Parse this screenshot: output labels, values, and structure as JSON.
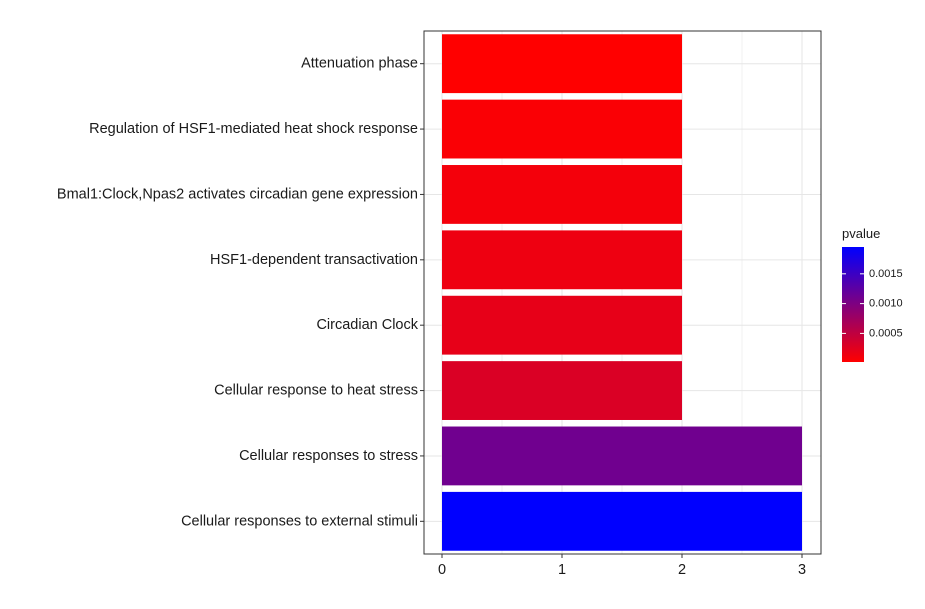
{
  "chart_data": {
    "type": "bar",
    "orientation": "horizontal",
    "categories": [
      "Attenuation phase",
      "Regulation of HSF1-mediated heat shock response",
      "Bmal1:Clock,Npas2 activates circadian gene expression",
      "HSF1-dependent transactivation",
      "Circadian Clock",
      "Cellular response to heat stress",
      "Cellular responses to stress",
      "Cellular responses to external stimuli"
    ],
    "values": [
      2,
      2,
      2,
      2,
      2,
      2,
      3,
      3
    ],
    "pvalues": [
      2e-05,
      6e-05,
      0.0001,
      0.00015,
      0.0002,
      0.0003,
      0.0011,
      0.00195
    ],
    "title": "",
    "xlabel": "",
    "ylabel": "",
    "xlim": [
      0,
      3
    ],
    "x_ticks": [
      "0",
      "1",
      "2",
      "3"
    ],
    "grid": true,
    "legend": {
      "title": "pvalue",
      "placement": "right",
      "range": [
        2e-05,
        0.00195
      ],
      "ticks": [
        "0.0005",
        "0.0010",
        "0.0015"
      ],
      "tick_values": [
        0.0005,
        0.001,
        0.0015
      ],
      "color_low": "#ff0000",
      "color_high": "#0000ff"
    }
  }
}
